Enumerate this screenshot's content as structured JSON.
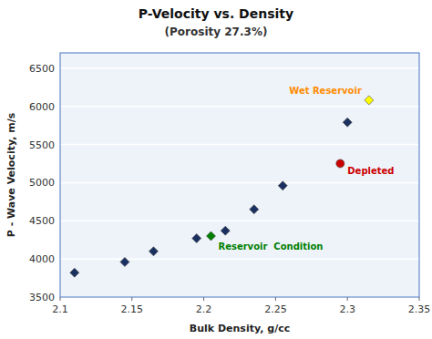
{
  "chart_data": {
    "type": "scatter",
    "title": "P-Velocity vs. Density",
    "subtitle": "(Porosity 27.3%)",
    "x_label": "Bulk Density, g/cc",
    "y_label": "P - Wave Velocity, m/s",
    "xlim": [
      2.1,
      2.35
    ],
    "ylim": [
      3500,
      6700
    ],
    "xticks": [
      2.1,
      2.15,
      2.2,
      2.25,
      2.3,
      2.35
    ],
    "yticks": [
      3500,
      4000,
      4500,
      5000,
      5500,
      6000,
      6500
    ],
    "grid": true,
    "series": [
      {
        "color": "#1a3060",
        "marker": "diamond",
        "x": [
          2.11,
          2.145,
          2.165,
          2.195,
          2.215,
          2.235,
          2.255,
          2.3
        ],
        "values": [
          3820,
          3960,
          4100,
          4270,
          4370,
          4650,
          4960,
          5790
        ]
      },
      {
        "color": "#008000",
        "marker": "diamond",
        "x": [
          2.205
        ],
        "values": [
          4300
        ]
      },
      {
        "color": "#cc0000",
        "marker": "circle",
        "x": [
          2.295
        ],
        "values": [
          5250
        ]
      },
      {
        "color": "#ffff00",
        "marker": "diamond",
        "x": [
          2.315
        ],
        "values": [
          6080
        ]
      }
    ],
    "annotations": [
      {
        "text": "Reservoir  Condition",
        "x": 2.205,
        "y": 4300,
        "color": "#008000"
      },
      {
        "text": "Depleted",
        "x": 2.295,
        "y": 5250,
        "color": "#cc0000"
      },
      {
        "text": "Wet Reservoir",
        "x": 2.315,
        "y": 6080,
        "color": "#ff8c00"
      }
    ]
  }
}
